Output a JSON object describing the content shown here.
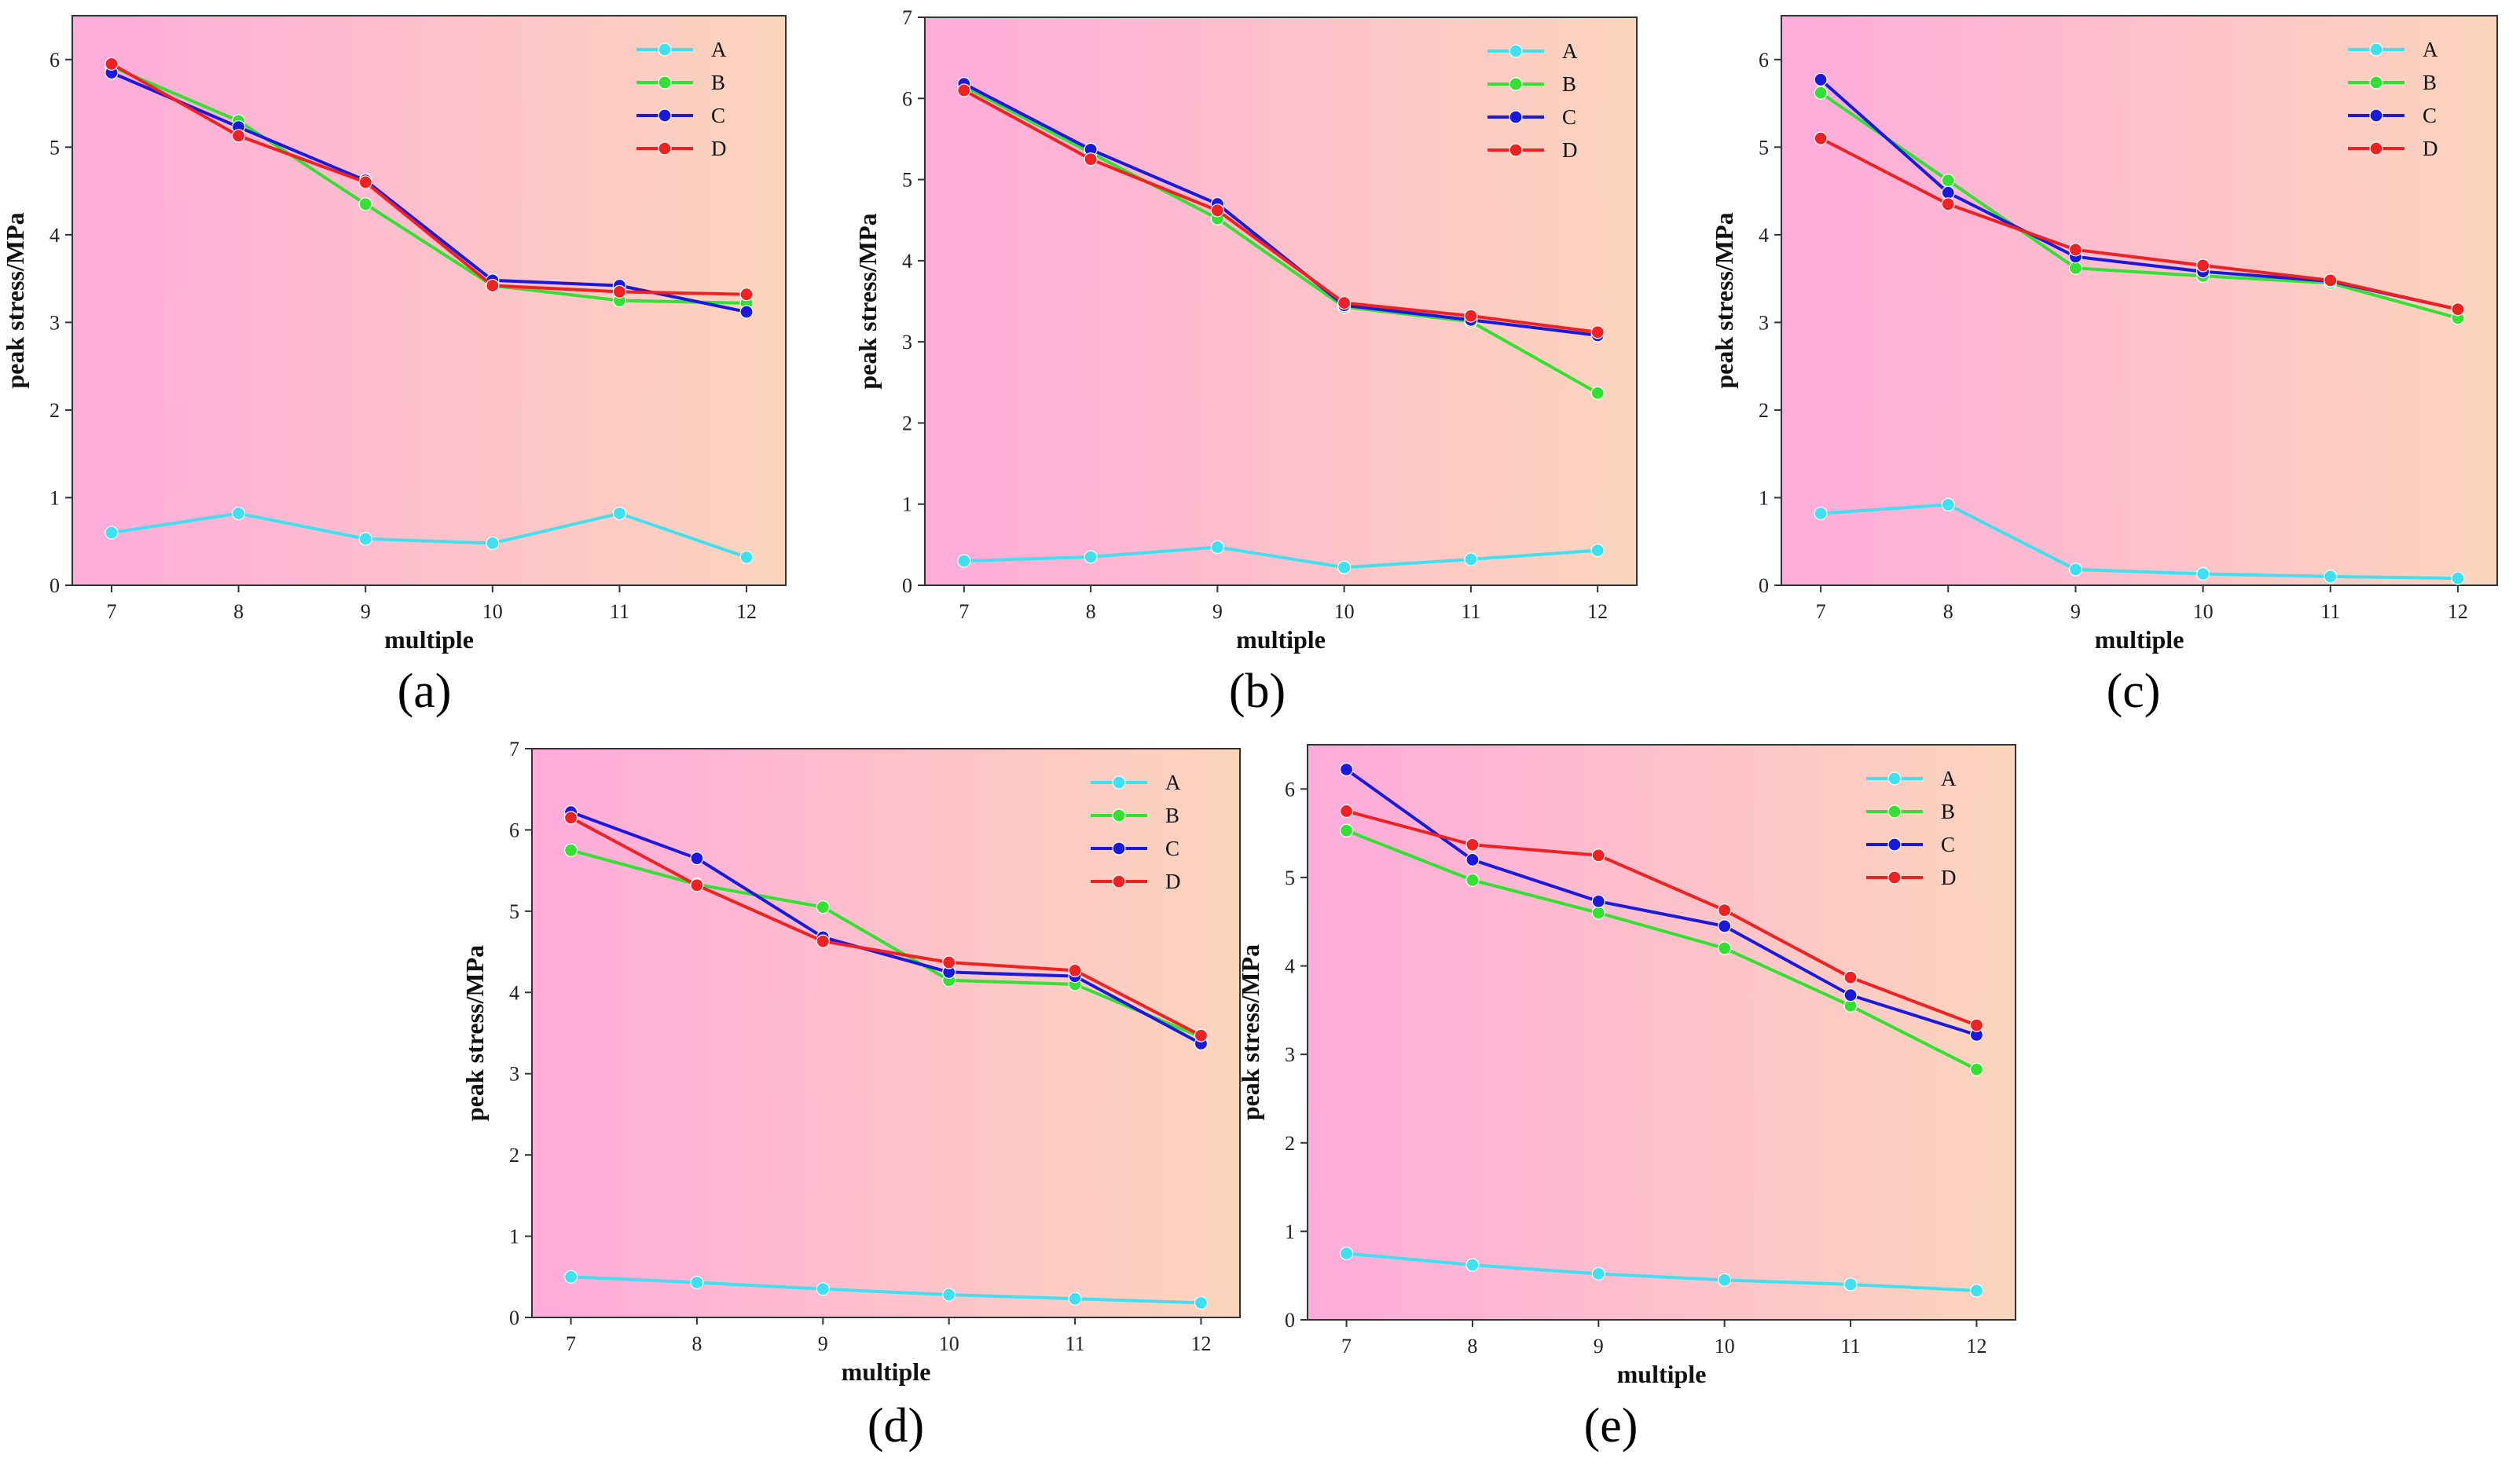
{
  "chart_data": [
    {
      "type": "line",
      "panel": "a",
      "xlabel": "multiple",
      "ylabel": "peak stress/MPa",
      "x": [
        7,
        8,
        9,
        10,
        11,
        12
      ],
      "ylim": [
        0,
        6.5
      ],
      "yticks": [
        0,
        1,
        2,
        3,
        4,
        5,
        6
      ],
      "legend_position": "top-right",
      "series": [
        {
          "name": "A",
          "color": "#3fe0f0",
          "values": [
            0.6,
            0.82,
            0.53,
            0.48,
            0.82,
            0.32
          ]
        },
        {
          "name": "B",
          "color": "#33e033",
          "values": [
            5.92,
            5.3,
            4.35,
            3.42,
            3.25,
            3.22
          ]
        },
        {
          "name": "C",
          "color": "#1a1add",
          "values": [
            5.85,
            5.23,
            4.62,
            3.48,
            3.42,
            3.12
          ]
        },
        {
          "name": "D",
          "color": "#ee2222",
          "values": [
            5.95,
            5.13,
            4.6,
            3.42,
            3.35,
            3.32
          ]
        }
      ]
    },
    {
      "type": "line",
      "panel": "b",
      "xlabel": "multiple",
      "ylabel": "peak stress/MPa",
      "x": [
        7,
        8,
        9,
        10,
        11,
        12
      ],
      "ylim": [
        0,
        7
      ],
      "yticks": [
        0,
        1,
        2,
        3,
        4,
        5,
        6,
        7
      ],
      "legend_position": "top-right",
      "series": [
        {
          "name": "A",
          "color": "#3fe0f0",
          "values": [
            0.3,
            0.35,
            0.47,
            0.22,
            0.32,
            0.43
          ]
        },
        {
          "name": "B",
          "color": "#33e033",
          "values": [
            6.15,
            5.33,
            4.52,
            3.43,
            3.25,
            2.37
          ]
        },
        {
          "name": "C",
          "color": "#1a1add",
          "values": [
            6.18,
            5.37,
            4.7,
            3.45,
            3.27,
            3.08
          ]
        },
        {
          "name": "D",
          "color": "#ee2222",
          "values": [
            6.1,
            5.25,
            4.62,
            3.48,
            3.32,
            3.12
          ]
        }
      ]
    },
    {
      "type": "line",
      "panel": "c",
      "xlabel": "multiple",
      "ylabel": "peak stress/MPa",
      "x": [
        7,
        8,
        9,
        10,
        11,
        12
      ],
      "ylim": [
        0,
        6.5
      ],
      "yticks": [
        0,
        1,
        2,
        3,
        4,
        5,
        6
      ],
      "legend_position": "top-right",
      "series": [
        {
          "name": "A",
          "color": "#3fe0f0",
          "values": [
            0.82,
            0.92,
            0.18,
            0.13,
            0.1,
            0.08
          ]
        },
        {
          "name": "B",
          "color": "#33e033",
          "values": [
            5.62,
            4.62,
            3.62,
            3.53,
            3.45,
            3.05
          ]
        },
        {
          "name": "C",
          "color": "#1a1add",
          "values": [
            5.77,
            4.48,
            3.75,
            3.58,
            3.47,
            3.15
          ]
        },
        {
          "name": "D",
          "color": "#ee2222",
          "values": [
            5.1,
            4.35,
            3.83,
            3.65,
            3.48,
            3.15
          ]
        }
      ]
    },
    {
      "type": "line",
      "panel": "d",
      "xlabel": "multiple",
      "ylabel": "peak stress/MPa",
      "x": [
        7,
        8,
        9,
        10,
        11,
        12
      ],
      "ylim": [
        0,
        7
      ],
      "yticks": [
        0,
        1,
        2,
        3,
        4,
        5,
        6,
        7
      ],
      "legend_position": "top-right",
      "series": [
        {
          "name": "A",
          "color": "#3fe0f0",
          "values": [
            0.5,
            0.43,
            0.35,
            0.28,
            0.23,
            0.18
          ]
        },
        {
          "name": "B",
          "color": "#33e033",
          "values": [
            5.75,
            5.33,
            5.05,
            4.15,
            4.1,
            3.45
          ]
        },
        {
          "name": "C",
          "color": "#1a1add",
          "values": [
            6.22,
            5.65,
            4.68,
            4.25,
            4.2,
            3.37
          ]
        },
        {
          "name": "D",
          "color": "#ee2222",
          "values": [
            6.15,
            5.32,
            4.63,
            4.37,
            4.27,
            3.47
          ]
        }
      ]
    },
    {
      "type": "line",
      "panel": "e",
      "xlabel": "multiple",
      "ylabel": "peak stress/MPa",
      "x": [
        7,
        8,
        9,
        10,
        11,
        12
      ],
      "ylim": [
        0,
        6.5
      ],
      "yticks": [
        0,
        1,
        2,
        3,
        4,
        5,
        6
      ],
      "legend_position": "top-right",
      "series": [
        {
          "name": "A",
          "color": "#3fe0f0",
          "values": [
            0.75,
            0.62,
            0.52,
            0.45,
            0.4,
            0.33
          ]
        },
        {
          "name": "B",
          "color": "#33e033",
          "values": [
            5.53,
            4.97,
            4.6,
            4.2,
            3.55,
            2.83
          ]
        },
        {
          "name": "C",
          "color": "#1a1add",
          "values": [
            6.22,
            5.2,
            4.73,
            4.45,
            3.67,
            3.22
          ]
        },
        {
          "name": "D",
          "color": "#ee2222",
          "values": [
            5.75,
            5.37,
            5.25,
            4.63,
            3.87,
            3.33
          ]
        }
      ]
    }
  ],
  "panel_labels": [
    "(a)",
    "(b)",
    "(c)",
    "(d)",
    "(e)"
  ]
}
